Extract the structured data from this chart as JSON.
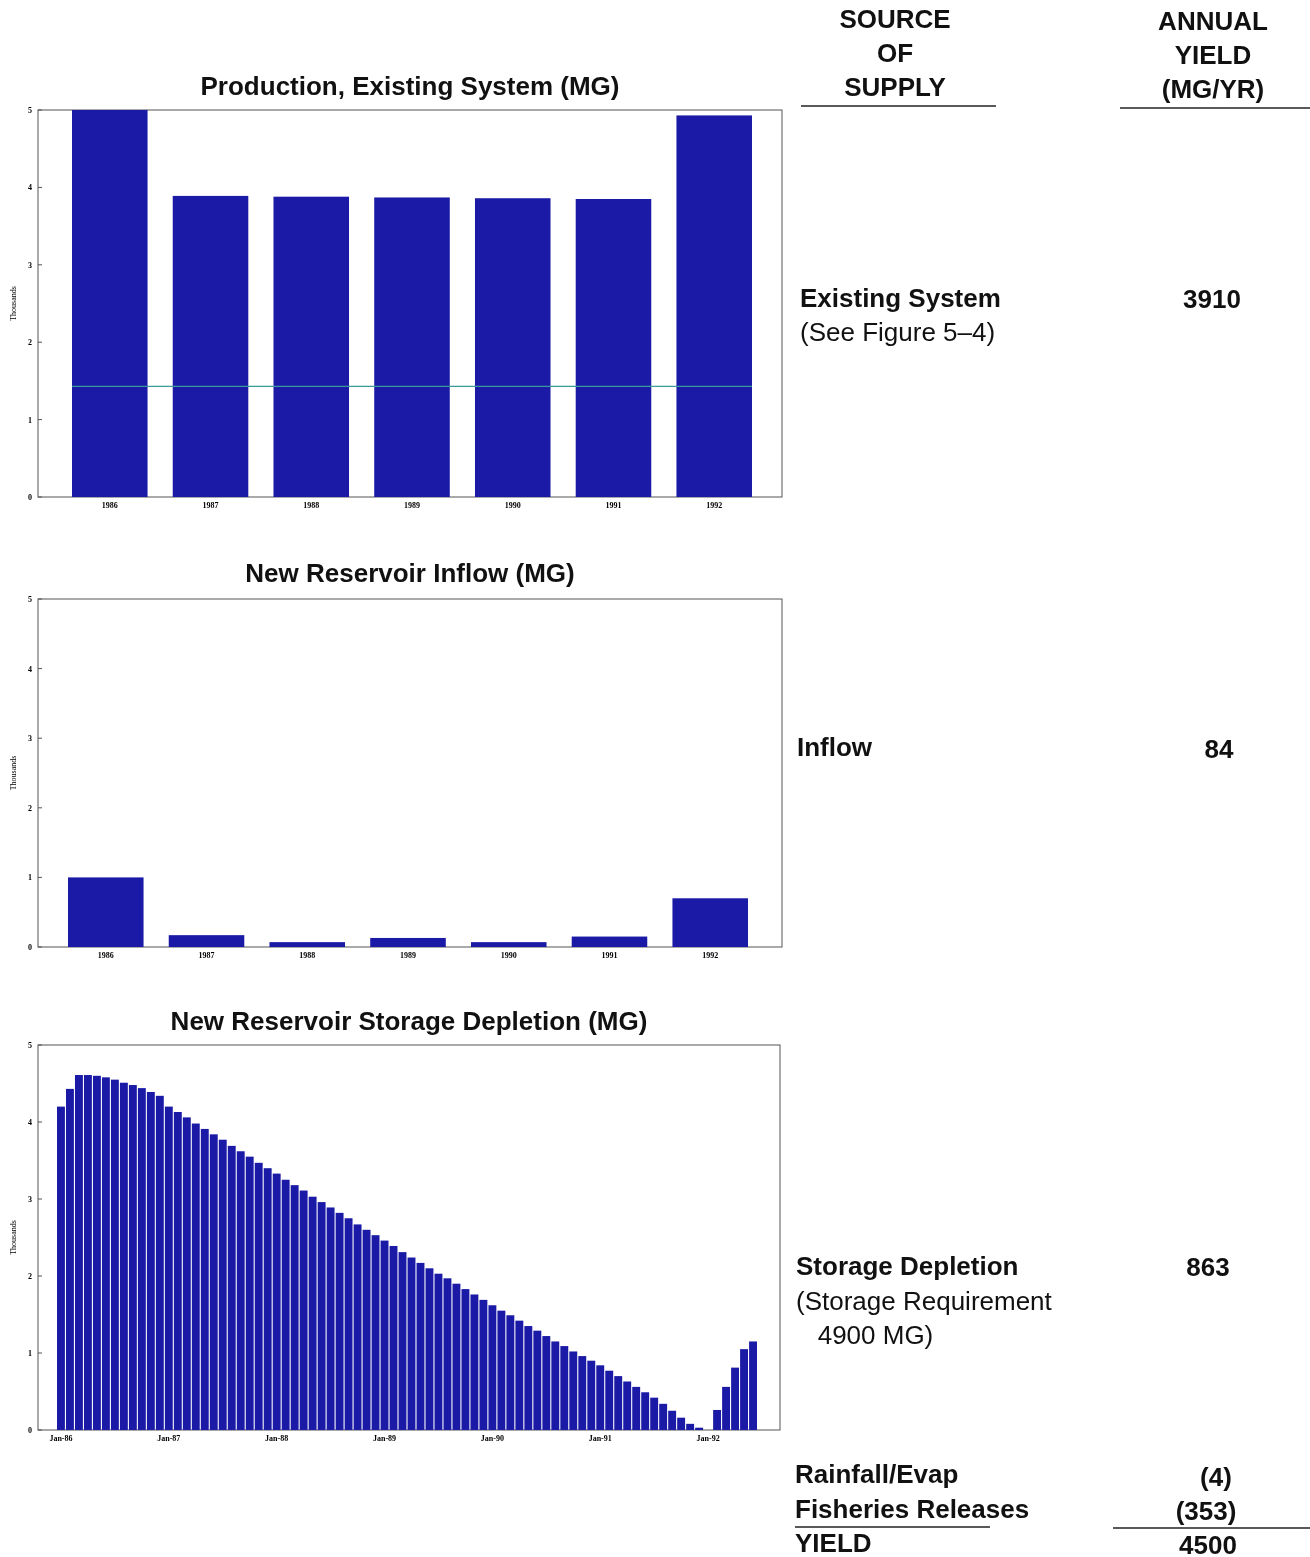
{
  "chart_data": [
    {
      "type": "bar",
      "title": "Production, Existing System (MG)",
      "ylabel": "Thousands",
      "categories": [
        "1986",
        "1987",
        "1988",
        "1989",
        "1990",
        "1991",
        "1992"
      ],
      "values": [
        5.0,
        3.89,
        3.88,
        3.87,
        3.86,
        3.85,
        4.93
      ],
      "color": "#1a1aa6",
      "ylim": [
        0,
        5
      ],
      "yticks": [
        0,
        1,
        2,
        3,
        4,
        5
      ],
      "ref_lines": [
        {
          "axis": "y",
          "value": 1.43,
          "color": "#3a9a9a"
        }
      ]
    },
    {
      "type": "bar",
      "title": "New Reservoir Inflow (MG)",
      "ylabel": "Thousands",
      "categories": [
        "1986",
        "1987",
        "1988",
        "1989",
        "1990",
        "1991",
        "1992"
      ],
      "values": [
        1.0,
        0.17,
        0.07,
        0.13,
        0.07,
        0.15,
        0.7
      ],
      "color": "#1a1aa6",
      "ylim": [
        0,
        5
      ],
      "yticks": [
        0,
        1,
        2,
        3,
        4,
        5
      ]
    },
    {
      "type": "bar",
      "title": "New Reservoir Storage Depletion (MG)",
      "ylabel": "Thousands",
      "categories": [
        "Jan-86",
        null,
        null,
        null,
        null,
        null,
        null,
        null,
        null,
        null,
        null,
        null,
        "Jan-87",
        null,
        null,
        null,
        null,
        null,
        null,
        null,
        null,
        null,
        null,
        null,
        "Jan-88",
        null,
        null,
        null,
        null,
        null,
        null,
        null,
        null,
        null,
        null,
        null,
        "Jan-89",
        null,
        null,
        null,
        null,
        null,
        null,
        null,
        null,
        null,
        null,
        null,
        "Jan-90",
        null,
        null,
        null,
        null,
        null,
        null,
        null,
        null,
        null,
        null,
        null,
        "Jan-91",
        null,
        null,
        null,
        null,
        null,
        null,
        null,
        null,
        null,
        null,
        null,
        "Jan-92",
        null,
        null,
        null,
        null,
        null
      ],
      "values": [
        4.2,
        4.43,
        4.61,
        4.61,
        4.6,
        4.58,
        4.55,
        4.51,
        4.48,
        4.44,
        4.39,
        4.34,
        4.2,
        4.13,
        4.06,
        3.98,
        3.91,
        3.84,
        3.77,
        3.69,
        3.62,
        3.55,
        3.47,
        3.4,
        3.33,
        3.25,
        3.18,
        3.11,
        3.03,
        2.96,
        2.89,
        2.82,
        2.75,
        2.67,
        2.6,
        2.53,
        2.46,
        2.39,
        2.31,
        2.24,
        2.17,
        2.1,
        2.03,
        1.97,
        1.9,
        1.83,
        1.76,
        1.69,
        1.62,
        1.55,
        1.49,
        1.42,
        1.35,
        1.29,
        1.22,
        1.15,
        1.09,
        1.02,
        0.96,
        0.9,
        0.84,
        0.77,
        0.7,
        0.63,
        0.56,
        0.49,
        0.42,
        0.34,
        0.25,
        0.16,
        0.08,
        0.03,
        0,
        0.26,
        0.56,
        0.81,
        1.05,
        1.15
      ],
      "color": "#1a1aa6",
      "ylim": [
        0,
        5
      ],
      "yticks": [
        0,
        1,
        2,
        3,
        4,
        5
      ]
    },
    {
      "type": "other",
      "annotations": [
        "SOURCE\nOF\nSUPPLY",
        "ANNUAL\nYIELD\n(MG/YR)",
        "Existing System",
        "(See Figure 5–4)",
        "3910",
        "Inflow",
        "84",
        "Storage Depletion",
        "(Storage Requirement\n   4900 MG)",
        "863",
        "Rainfall/Evap",
        "(4)",
        "Fisheries Releases",
        "(353)",
        "YIELD",
        "4500"
      ]
    }
  ]
}
